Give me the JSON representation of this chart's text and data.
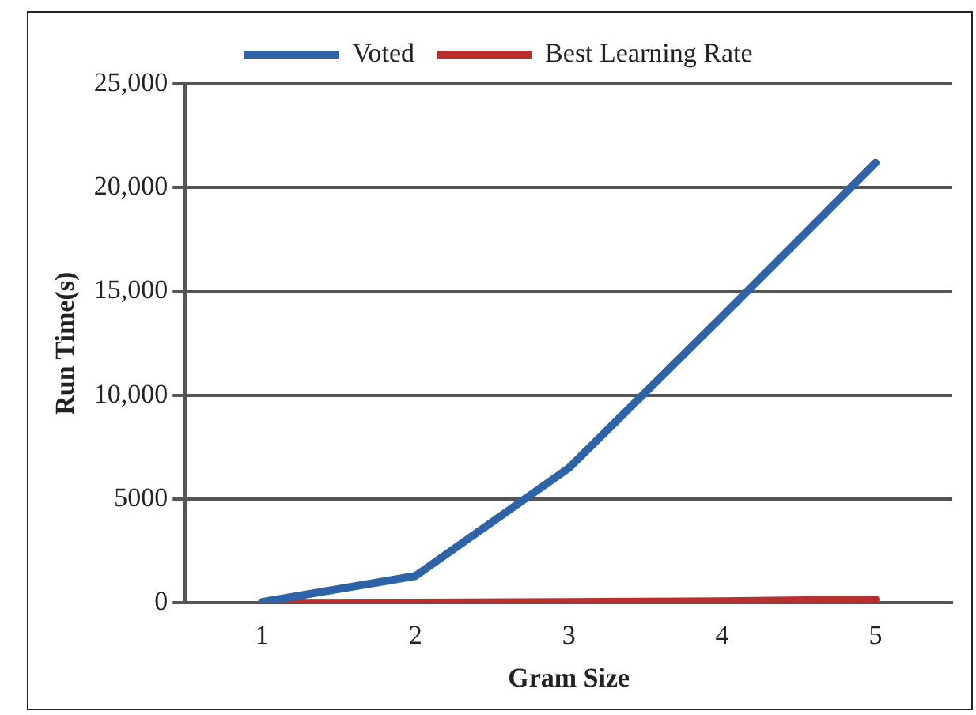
{
  "chart_data": {
    "type": "line",
    "xlabel": "Gram Size",
    "ylabel": "Run Time(s)",
    "categories": [
      "1",
      "2",
      "3",
      "4",
      "5"
    ],
    "series": [
      {
        "name": "Voted",
        "color": "#2e63a8",
        "values": [
          50,
          1300,
          6500,
          13800,
          21200
        ]
      },
      {
        "name": "Best Learning Rate",
        "color": "#b8302c",
        "values": [
          10,
          20,
          40,
          80,
          170
        ]
      }
    ],
    "ylim": [
      0,
      25000
    ],
    "yticks": [
      0,
      5000,
      {
        "value": 10000,
        "label": "10,000"
      },
      {
        "value": 15000,
        "label": "15,000"
      },
      {
        "value": 20000,
        "label": "20,000"
      },
      {
        "value": 25000,
        "label": "25,000"
      }
    ],
    "grid": "y",
    "legend": "top",
    "marker": "none",
    "line_style": "solid"
  }
}
